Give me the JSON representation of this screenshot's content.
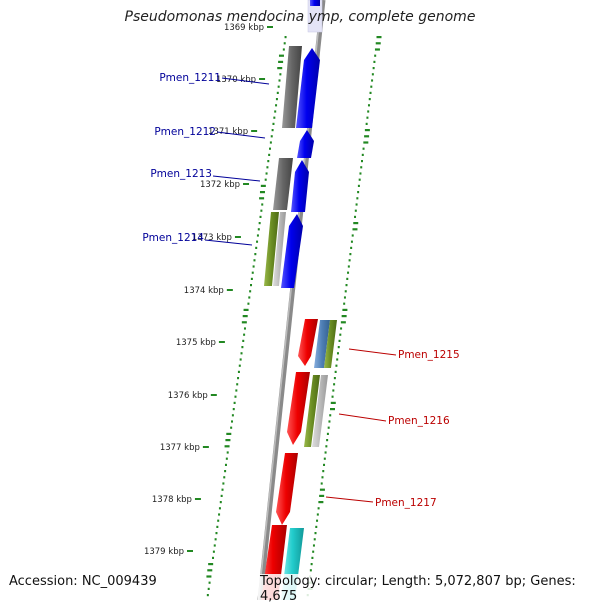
{
  "header": {
    "title": "Pseudomonas mendocina ymp, complete genome"
  },
  "footer": {
    "accession": "Accession: NC_009439",
    "summary": "Topology: circular; Length: 5,072,807 bp; Genes: 4,675"
  },
  "scale": {
    "unit": "kbp",
    "ticks": [
      "1369 kbp",
      "1370 kbp",
      "1371 kbp",
      "1372 kbp",
      "1373 kbp",
      "1374 kbp",
      "1375 kbp",
      "1376 kbp",
      "1377 kbp",
      "1378 kbp",
      "1379 kbp"
    ]
  },
  "gene_labels": [
    {
      "label": "Pmen_1211",
      "strand": "forward"
    },
    {
      "label": "Pmen_1212",
      "strand": "forward"
    },
    {
      "label": "Pmen_1213",
      "strand": "forward"
    },
    {
      "label": "Pmen_1214",
      "strand": "forward"
    },
    {
      "label": "Pmen_1215",
      "strand": "reverse"
    },
    {
      "label": "Pmen_1216",
      "strand": "reverse"
    },
    {
      "label": "Pmen_1217",
      "strand": "reverse"
    }
  ],
  "colors": {
    "forward_cds": "#0000ee",
    "reverse_cds": "#ee0000",
    "forward_label": "#000099",
    "reverse_label": "#bb0000",
    "backbone": "#888888",
    "gc_dots": "#228822",
    "gray_feature": "#666666",
    "olive_feature": "#6b8e23",
    "steel_feature": "#4f7fb5",
    "cyan_feature": "#22cccc"
  }
}
